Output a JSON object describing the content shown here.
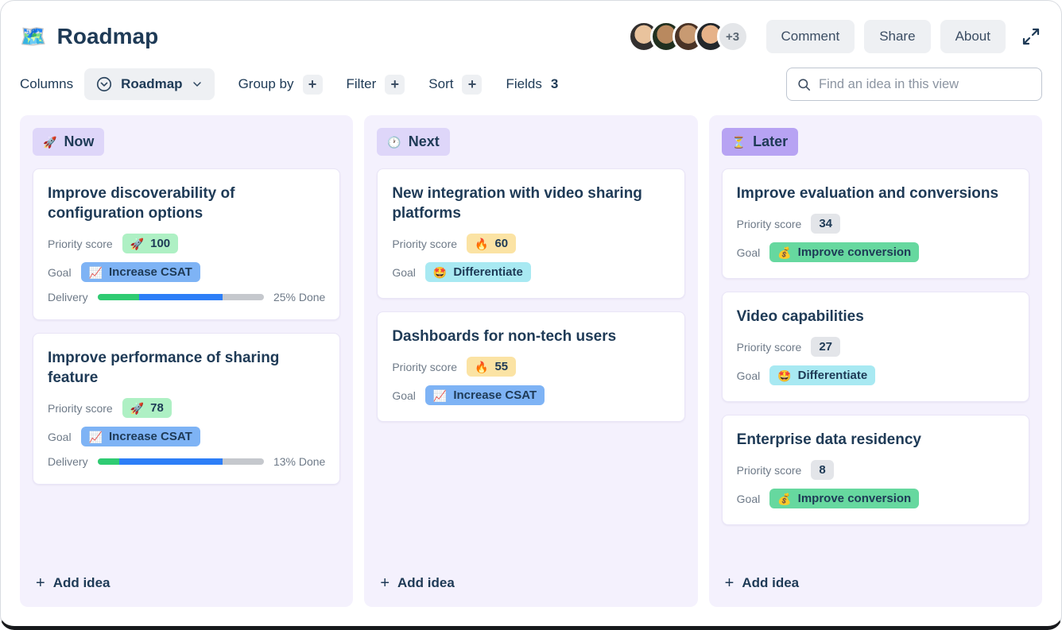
{
  "header": {
    "title_icon": "🗺️",
    "title": "Roadmap",
    "avatar_extra": "+3",
    "comment_label": "Comment",
    "share_label": "Share",
    "about_label": "About"
  },
  "toolbar": {
    "columns_label": "Columns",
    "view_selector_label": "Roadmap",
    "group_by_label": "Group by",
    "filter_label": "Filter",
    "sort_label": "Sort",
    "fields_label": "Fields",
    "fields_count": "3",
    "plus_icon": "+",
    "search_placeholder": "Find an idea in this view"
  },
  "palette": {
    "title_navy": "#1e3a56",
    "column_bg": "#f4f1fd",
    "badge_now_next_bg": "#ded6f9",
    "badge_later_bg": "#b7a3f3",
    "priority_green": "#aef0c4",
    "priority_yellow": "#fbe3a4",
    "priority_gray": "#e3e5e9",
    "goal_blue": "#7eb3f5",
    "goal_cyan": "#a8e9f2",
    "goal_green": "#66d89f",
    "progress_done_green": "#2fcb72",
    "progress_in_progress_blue": "#2d7ef7",
    "progress_track_gray": "#c5c8cd"
  },
  "board": {
    "add_idea_label": "Add idea",
    "columns": [
      {
        "label": "Now",
        "icon": "🚀",
        "cards": [
          {
            "title": "Improve discoverability of configuration options",
            "priority_label": "Priority score",
            "priority_icon": "🚀",
            "priority_value": "100",
            "goal_label": "Goal",
            "goal_icon": "📈",
            "goal_value": "Increase CSAT",
            "delivery_label": "Delivery",
            "delivery_done_pct": 25,
            "delivery_in_progress_pct": 50,
            "delivery_text": "25% Done"
          },
          {
            "title": "Improve performance of sharing feature",
            "priority_label": "Priority score",
            "priority_icon": "🚀",
            "priority_value": "78",
            "goal_label": "Goal",
            "goal_icon": "📈",
            "goal_value": "Increase CSAT",
            "delivery_label": "Delivery",
            "delivery_done_pct": 13,
            "delivery_in_progress_pct": 62,
            "delivery_text": "13% Done"
          }
        ]
      },
      {
        "label": "Next",
        "icon": "🕐",
        "cards": [
          {
            "title": "New integration with video sharing platforms",
            "priority_label": "Priority score",
            "priority_icon": "🔥",
            "priority_value": "60",
            "goal_label": "Goal",
            "goal_icon": "🤩",
            "goal_value": "Differentiate"
          },
          {
            "title": "Dashboards for non-tech users",
            "priority_label": "Priority score",
            "priority_icon": "🔥",
            "priority_value": "55",
            "goal_label": "Goal",
            "goal_icon": "📈",
            "goal_value": "Increase CSAT"
          }
        ]
      },
      {
        "label": "Later",
        "icon": "⏳",
        "cards": [
          {
            "title": "Improve evaluation and conversions",
            "priority_label": "Priority score",
            "priority_value": "34",
            "goal_label": "Goal",
            "goal_icon": "💰",
            "goal_value": "Improve conversion"
          },
          {
            "title": "Video capabilities",
            "priority_label": "Priority score",
            "priority_value": "27",
            "goal_label": "Goal",
            "goal_icon": "🤩",
            "goal_value": "Differentiate"
          },
          {
            "title": "Enterprise data residency",
            "priority_label": "Priority score",
            "priority_value": "8",
            "goal_label": "Goal",
            "goal_icon": "💰",
            "goal_value": "Improve conversion"
          }
        ]
      }
    ]
  }
}
